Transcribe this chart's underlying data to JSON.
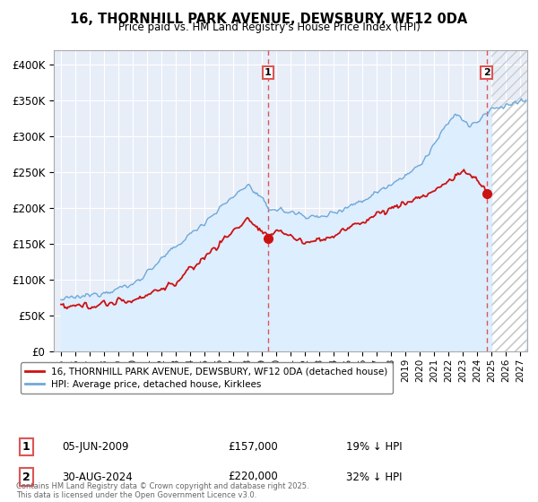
{
  "title_line1": "16, THORNHILL PARK AVENUE, DEWSBURY, WF12 0DA",
  "title_line2": "Price paid vs. HM Land Registry's House Price Index (HPI)",
  "ylim": [
    0,
    420000
  ],
  "yticks": [
    0,
    50000,
    100000,
    150000,
    200000,
    250000,
    300000,
    350000,
    400000
  ],
  "ytick_labels": [
    "£0",
    "£50K",
    "£100K",
    "£150K",
    "£200K",
    "£250K",
    "£300K",
    "£350K",
    "£400K"
  ],
  "hpi_color": "#6fa8d8",
  "hpi_fill_color": "#ddeeff",
  "price_color": "#cc1111",
  "sale1_date": 2009.43,
  "sale1_price": 157000,
  "sale2_date": 2024.66,
  "sale2_price": 220000,
  "vline_color": "#dd5555",
  "background_color": "#e8eef8",
  "grid_color": "#ffffff",
  "legend_label_price": "16, THORNHILL PARK AVENUE, DEWSBURY, WF12 0DA (detached house)",
  "legend_label_hpi": "HPI: Average price, detached house, Kirklees",
  "footer": "Contains HM Land Registry data © Crown copyright and database right 2025.\nThis data is licensed under the Open Government Licence v3.0.",
  "xlim_start": 1994.5,
  "xlim_end": 2027.5,
  "hatch_start": 2025.0
}
